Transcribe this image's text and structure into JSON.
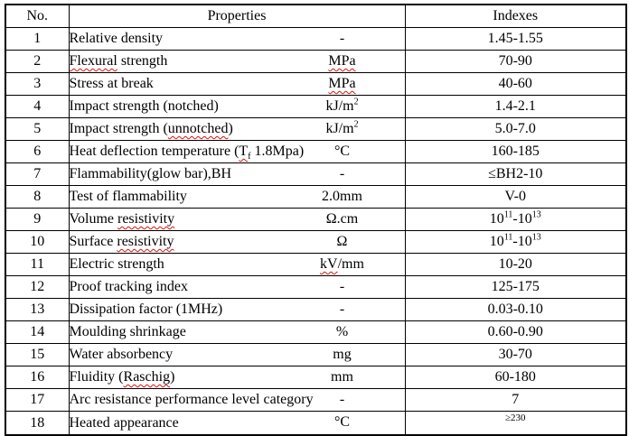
{
  "table": {
    "headers": {
      "no": "No.",
      "properties": "Properties",
      "indexes": "Indexes"
    },
    "border_color": "#000000",
    "squiggle_color": "#e01010",
    "rows": [
      {
        "no": "1",
        "property": [
          [
            "Relative density",
            ""
          ]
        ],
        "unit": [
          [
            "-",
            ""
          ]
        ],
        "index": [
          [
            "1.45-1.55",
            ""
          ]
        ]
      },
      {
        "no": "2",
        "property": [
          [
            "Flexural",
            "sq"
          ],
          [
            " strength",
            ""
          ]
        ],
        "unit": [
          [
            "MPa",
            "sq"
          ]
        ],
        "index": [
          [
            "70-90",
            ""
          ]
        ]
      },
      {
        "no": "3",
        "property": [
          [
            "Stress at break",
            ""
          ]
        ],
        "unit": [
          [
            "MPa",
            "sq"
          ]
        ],
        "index": [
          [
            "40-60",
            ""
          ]
        ]
      },
      {
        "no": "4",
        "property": [
          [
            "Impact strength (notched)",
            ""
          ]
        ],
        "unit": [
          [
            "kJ/m",
            ""
          ],
          [
            "2",
            "sup"
          ]
        ],
        "index": [
          [
            "1.4-2.1",
            ""
          ]
        ]
      },
      {
        "no": "5",
        "property": [
          [
            "Impact strength (",
            ""
          ],
          [
            "unnotched",
            "sq"
          ],
          [
            ")",
            ""
          ]
        ],
        "unit": [
          [
            "kJ/m",
            ""
          ],
          [
            "2",
            "sup"
          ]
        ],
        "index": [
          [
            "5.0-7.0",
            ""
          ]
        ]
      },
      {
        "no": "6",
        "property": [
          [
            "Heat deflection temperature (",
            ""
          ],
          [
            "T",
            "sq"
          ],
          [
            "f",
            "sqsub"
          ],
          [
            " 1.8Mpa)",
            ""
          ]
        ],
        "unit": [
          [
            "°C",
            ""
          ]
        ],
        "index": [
          [
            "160-185",
            ""
          ]
        ]
      },
      {
        "no": "7",
        "property": [
          [
            "Flammability(glow bar),BH",
            ""
          ]
        ],
        "unit": [
          [
            "-",
            ""
          ]
        ],
        "index": [
          [
            "≤BH2-10",
            ""
          ]
        ]
      },
      {
        "no": "8",
        "property": [
          [
            "Test of flammability",
            ""
          ]
        ],
        "unit": [
          [
            "2.0mm",
            ""
          ]
        ],
        "index": [
          [
            "V-0",
            ""
          ]
        ]
      },
      {
        "no": "9",
        "property": [
          [
            "Volume ",
            ""
          ],
          [
            "resistivity",
            "sq"
          ]
        ],
        "unit": [
          [
            "Ω.cm",
            ""
          ]
        ],
        "index": [
          [
            "10",
            ""
          ],
          [
            "11",
            "sup"
          ],
          [
            "-10",
            ""
          ],
          [
            "13",
            "sup"
          ]
        ]
      },
      {
        "no": "10",
        "property": [
          [
            "Surface ",
            ""
          ],
          [
            "resistivity",
            "sq"
          ]
        ],
        "unit": [
          [
            "Ω",
            ""
          ]
        ],
        "index": [
          [
            "10",
            ""
          ],
          [
            "11",
            "sup"
          ],
          [
            "-10",
            ""
          ],
          [
            "13",
            "sup"
          ]
        ]
      },
      {
        "no": "11",
        "property": [
          [
            "Electric strength",
            ""
          ]
        ],
        "unit": [
          [
            "kV",
            "sq"
          ],
          [
            "/mm",
            ""
          ]
        ],
        "index": [
          [
            "10-20",
            ""
          ]
        ]
      },
      {
        "no": "12",
        "property": [
          [
            "Proof tracking index",
            ""
          ]
        ],
        "unit": [
          [
            "-",
            ""
          ]
        ],
        "index": [
          [
            "125-175",
            ""
          ]
        ]
      },
      {
        "no": "13",
        "property": [
          [
            "Dissipation factor (1MHz)",
            ""
          ]
        ],
        "unit": [
          [
            "-",
            ""
          ]
        ],
        "index": [
          [
            "0.03-0.10",
            ""
          ]
        ]
      },
      {
        "no": "14",
        "property": [
          [
            "Moulding shrinkage",
            ""
          ]
        ],
        "unit": [
          [
            "%",
            ""
          ]
        ],
        "index": [
          [
            "0.60-0.90",
            ""
          ]
        ]
      },
      {
        "no": "15",
        "property": [
          [
            "Water absorbency",
            ""
          ]
        ],
        "unit": [
          [
            "mg",
            ""
          ]
        ],
        "index": [
          [
            "30-70",
            ""
          ]
        ]
      },
      {
        "no": "16",
        "property": [
          [
            "Fluidity (",
            ""
          ],
          [
            "Raschig",
            "sq"
          ],
          [
            ")",
            ""
          ]
        ],
        "unit": [
          [
            "mm",
            ""
          ]
        ],
        "index": [
          [
            "60-180",
            ""
          ]
        ]
      },
      {
        "no": "17",
        "property": [
          [
            "Arc resistance performance level category",
            ""
          ]
        ],
        "unit": [
          [
            "-",
            ""
          ]
        ],
        "index": [
          [
            "7",
            ""
          ]
        ]
      },
      {
        "no": "18",
        "property": [
          [
            "Heated appearance",
            ""
          ]
        ],
        "unit": [
          [
            "°C",
            ""
          ]
        ],
        "index": [
          [
            "≥230",
            ""
          ]
        ],
        "index_small_top": true
      }
    ]
  }
}
